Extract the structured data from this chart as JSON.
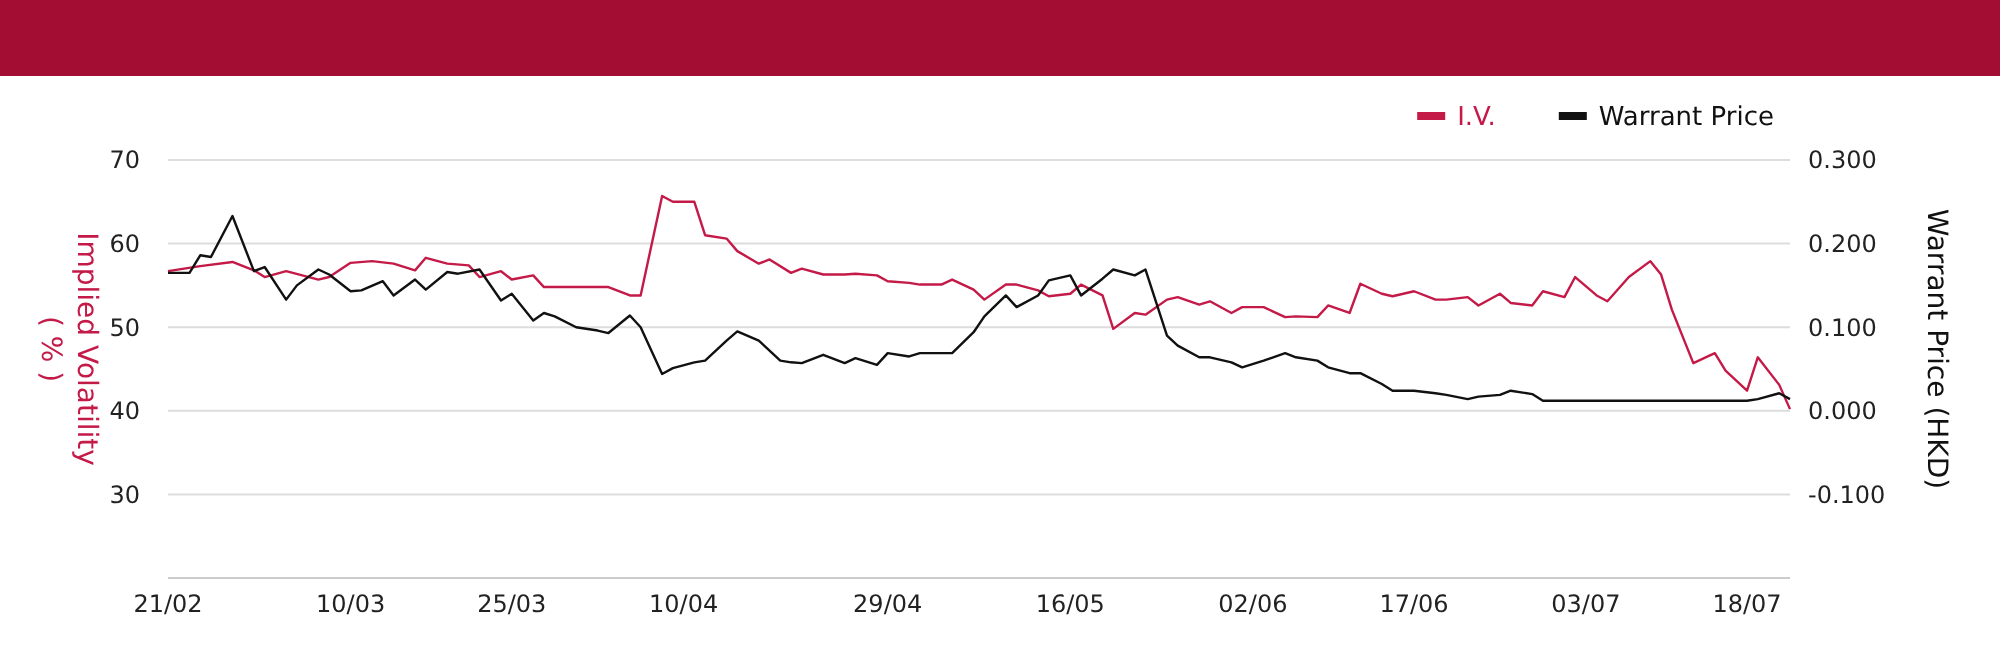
{
  "chart_data": {
    "type": "line",
    "ylabel": "Implied Volatility\n( % )",
    "y2label": "Warrant Price (HKD)",
    "xlim": [
      "--02-21",
      "--07-22"
    ],
    "xticks": [
      {
        "value": "--02-21",
        "label": "21/02"
      },
      {
        "value": "--03-10",
        "label": "10/03"
      },
      {
        "value": "--03-25",
        "label": "25/03"
      },
      {
        "value": "--04-10",
        "label": "10/04"
      },
      {
        "value": "--04-29",
        "label": "29/04"
      },
      {
        "value": "--05-16",
        "label": "16/05"
      },
      {
        "value": "--06-02",
        "label": "02/06"
      },
      {
        "value": "--06-17",
        "label": "17/06"
      },
      {
        "value": "--07-03",
        "label": "03/07"
      },
      {
        "value": "--07-18",
        "label": "18/07"
      }
    ],
    "ylim": [
      20,
      70
    ],
    "yticks": [
      30,
      40,
      50,
      60,
      70
    ],
    "y2lim": [
      -0.2,
      0.3
    ],
    "y2ticks": [
      {
        "value": -0.1,
        "label": "-0.100"
      },
      {
        "value": 0,
        "label": "0.000"
      },
      {
        "value": 0.1,
        "label": "0.100"
      },
      {
        "value": 0.2,
        "label": "0.200"
      },
      {
        "value": 0.3,
        "label": "0.300"
      }
    ],
    "grid": "y",
    "legend": "top right",
    "marker": "none",
    "line_style": "solid",
    "series": [
      {
        "name": "I.V.",
        "color": "#c41a48",
        "x": [
          "--02-21",
          "--02-24",
          "--02-27",
          "--03-01",
          "--03-02",
          "--03-04",
          "--03-07",
          "--03-08",
          "--03-10",
          "--03-12",
          "--03-14",
          "--03-16",
          "--03-17",
          "--03-19",
          "--03-21",
          "--03-22",
          "--03-24",
          "--03-25",
          "--03-27",
          "--03-28",
          "--03-31",
          "--04-03",
          "--04-05",
          "--04-06",
          "--04-08",
          "--04-09",
          "--04-11",
          "--04-12",
          "--04-14",
          "--04-15",
          "--04-17",
          "--04-18",
          "--04-20",
          "--04-21",
          "--04-23",
          "--04-25",
          "--04-26",
          "--04-28",
          "--04-29",
          "--05-01",
          "--05-02",
          "--05-04",
          "--05-05",
          "--05-07",
          "--05-08",
          "--05-10",
          "--05-11",
          "--05-13",
          "--05-14",
          "--05-16",
          "--05-17",
          "--05-19",
          "--05-20",
          "--05-22",
          "--05-23",
          "--05-25",
          "--05-26",
          "--05-28",
          "--05-29",
          "--05-31",
          "--06-01",
          "--06-03",
          "--06-05",
          "--06-06",
          "--06-08",
          "--06-09",
          "--06-11",
          "--06-12",
          "--06-14",
          "--06-15",
          "--06-17",
          "--06-19",
          "--06-20",
          "--06-22",
          "--06-23",
          "--06-25",
          "--06-26",
          "--06-28",
          "--06-29",
          "--07-01",
          "--07-02",
          "--07-04",
          "--07-05",
          "--07-07",
          "--07-09",
          "--07-10",
          "--07-11",
          "--07-13",
          "--07-15",
          "--07-16",
          "--07-18",
          "--07-19",
          "--07-21",
          "--07-22"
        ],
        "values": [
          56.7,
          57.3,
          57.8,
          56.8,
          56.0,
          56.7,
          55.7,
          56.0,
          57.7,
          57.9,
          57.6,
          56.8,
          58.3,
          57.6,
          57.4,
          56.0,
          56.7,
          55.7,
          56.2,
          54.8,
          54.8,
          54.8,
          53.8,
          53.8,
          65.7,
          65.0,
          65.0,
          61.0,
          60.6,
          59.1,
          57.6,
          58.1,
          56.5,
          57.0,
          56.3,
          56.3,
          56.4,
          56.2,
          55.5,
          55.3,
          55.1,
          55.1,
          55.7,
          54.5,
          53.3,
          55.1,
          55.1,
          54.4,
          53.7,
          54.0,
          55.1,
          53.8,
          49.8,
          51.7,
          51.5,
          53.3,
          53.6,
          52.7,
          53.1,
          51.7,
          52.4,
          52.4,
          51.2,
          51.3,
          51.2,
          52.6,
          51.7,
          55.2,
          54.0,
          53.7,
          54.3,
          53.3,
          53.3,
          53.6,
          52.6,
          54.0,
          52.9,
          52.6,
          54.3,
          53.6,
          56.0,
          53.8,
          53.1,
          56.0,
          57.9,
          56.3,
          52.1,
          45.7,
          46.9,
          44.8,
          42.4,
          46.4,
          43.1,
          40.2
        ]
      },
      {
        "name": "Warrant Price",
        "color": "#111111",
        "axis": "y2",
        "x": [
          "--02-21",
          "--02-23",
          "--02-24",
          "--02-25",
          "--02-27",
          "--03-01",
          "--03-02",
          "--03-04",
          "--03-05",
          "--03-07",
          "--03-08",
          "--03-10",
          "--03-11",
          "--03-13",
          "--03-14",
          "--03-16",
          "--03-17",
          "--03-19",
          "--03-20",
          "--03-22",
          "--03-24",
          "--03-25",
          "--03-27",
          "--03-28",
          "--03-29",
          "--03-31",
          "--04-02",
          "--04-03",
          "--04-05",
          "--04-06",
          "--04-08",
          "--04-09",
          "--04-11",
          "--04-12",
          "--04-14",
          "--04-15",
          "--04-17",
          "--04-19",
          "--04-20",
          "--04-21",
          "--04-23",
          "--04-25",
          "--04-26",
          "--04-28",
          "--04-29",
          "--05-01",
          "--05-02",
          "--05-04",
          "--05-05",
          "--05-07",
          "--05-08",
          "--05-10",
          "--05-11",
          "--05-13",
          "--05-14",
          "--05-16",
          "--05-17",
          "--05-19",
          "--05-20",
          "--05-22",
          "--05-23",
          "--05-25",
          "--05-26",
          "--05-28",
          "--05-29",
          "--05-31",
          "--06-01",
          "--06-03",
          "--06-05",
          "--06-06",
          "--06-08",
          "--06-09",
          "--06-11",
          "--06-12",
          "--06-14",
          "--06-15",
          "--06-17",
          "--06-19",
          "--06-20",
          "--06-22",
          "--06-23",
          "--06-25",
          "--06-26",
          "--06-28",
          "--06-29",
          "--07-18",
          "--07-19",
          "--07-21",
          "--07-22"
        ],
        "values": [
          0.165,
          0.165,
          0.186,
          0.184,
          0.233,
          0.167,
          0.172,
          0.133,
          0.15,
          0.169,
          0.163,
          0.143,
          0.144,
          0.155,
          0.138,
          0.157,
          0.145,
          0.166,
          0.164,
          0.169,
          0.132,
          0.14,
          0.108,
          0.117,
          0.113,
          0.1,
          0.096,
          0.093,
          0.114,
          0.1,
          0.044,
          0.051,
          0.058,
          0.06,
          0.084,
          0.095,
          0.084,
          0.06,
          0.058,
          0.057,
          0.067,
          0.057,
          0.063,
          0.055,
          0.069,
          0.065,
          0.069,
          0.069,
          0.069,
          0.094,
          0.113,
          0.138,
          0.124,
          0.138,
          0.156,
          0.162,
          0.138,
          0.158,
          0.169,
          0.162,
          0.169,
          0.09,
          0.078,
          0.064,
          0.064,
          0.058,
          0.052,
          0.06,
          0.069,
          0.064,
          0.06,
          0.052,
          0.045,
          0.045,
          0.032,
          0.024,
          0.024,
          0.021,
          0.019,
          0.014,
          0.017,
          0.019,
          0.024,
          0.02,
          0.012,
          0.012,
          0.014,
          0.021,
          0.014
        ]
      }
    ]
  }
}
